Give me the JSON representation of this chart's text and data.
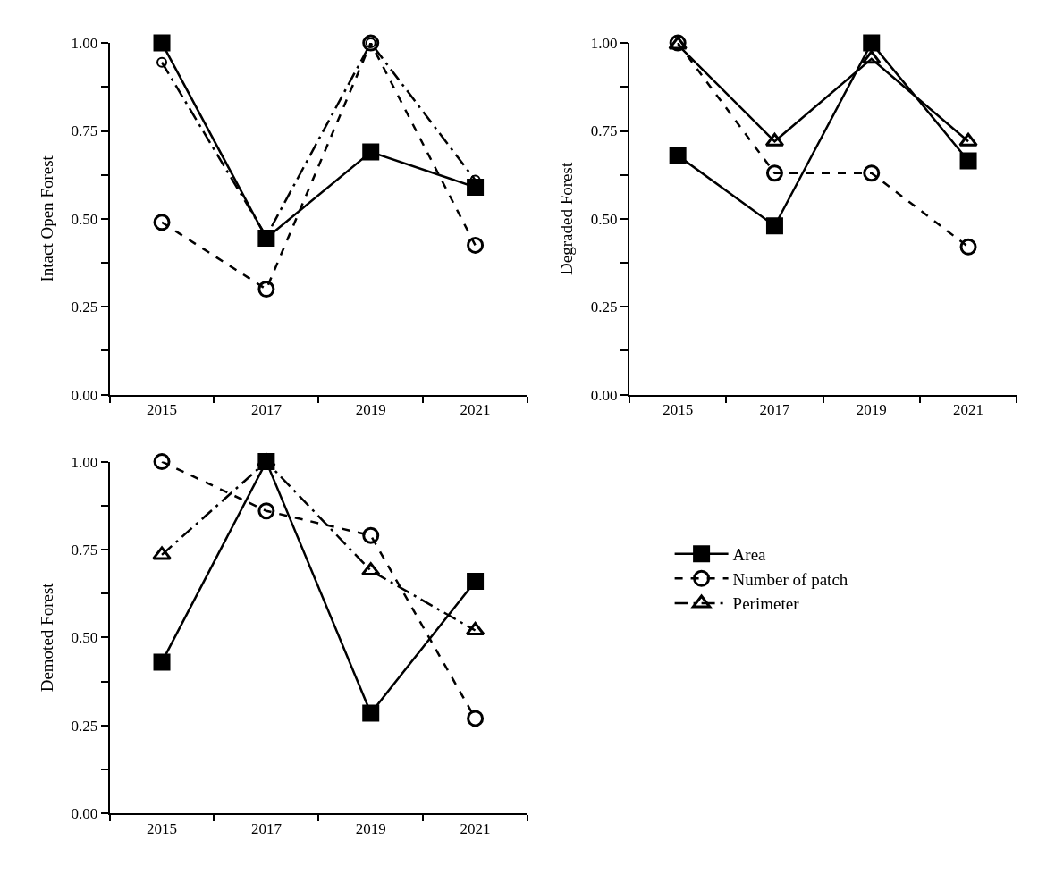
{
  "chart_data": [
    {
      "type": "line",
      "ylabel": "Intact Open Forest",
      "categories": [
        "2015",
        "2017",
        "2019",
        "2021"
      ],
      "ylim": [
        0,
        1.0
      ],
      "yticks": [
        {
          "value": 0,
          "label": "0.00"
        },
        {
          "value": 0.125,
          "label": null
        },
        {
          "value": 0.25,
          "label": "0.25"
        },
        {
          "value": 0.375,
          "label": null
        },
        {
          "value": 0.5,
          "label": "0.50"
        },
        {
          "value": 0.625,
          "label": null
        },
        {
          "value": 0.75,
          "label": "0.75"
        },
        {
          "value": 0.875,
          "label": null
        },
        {
          "value": 1.0,
          "label": "1.00"
        }
      ],
      "series": [
        {
          "color": "#000000",
          "marker": "square",
          "line_style": "solid",
          "values": [
            1.0,
            0.445,
            0.69,
            0.59
          ]
        },
        {
          "color": "#000000",
          "marker": "circle",
          "line_style": "dashed",
          "values": [
            0.49,
            0.3,
            1.0,
            0.425
          ]
        },
        {
          "color": "#000000",
          "marker": "circle",
          "line_style": "dashdot",
          "values": [
            0.945,
            0.45,
            1.0,
            0.61
          ]
        }
      ]
    },
    {
      "type": "line",
      "ylabel": "Degraded Forest",
      "categories": [
        "2015",
        "2017",
        "2019",
        "2021"
      ],
      "ylim": [
        0,
        1.0
      ],
      "yticks": [
        {
          "value": 0,
          "label": "0.00"
        },
        {
          "value": 0.125,
          "label": null
        },
        {
          "value": 0.25,
          "label": "0.25"
        },
        {
          "value": 0.375,
          "label": null
        },
        {
          "value": 0.5,
          "label": "0.50"
        },
        {
          "value": 0.625,
          "label": null
        },
        {
          "value": 0.75,
          "label": "0.75"
        },
        {
          "value": 0.875,
          "label": null
        },
        {
          "value": 1.0,
          "label": "1.00"
        }
      ],
      "series": [
        {
          "color": "#000000",
          "marker": "square",
          "line_style": "solid",
          "values": [
            0.68,
            0.48,
            1.0,
            0.665
          ]
        },
        {
          "color": "#000000",
          "marker": "circle",
          "line_style": "dashed",
          "values": [
            1.0,
            0.63,
            0.63,
            0.42
          ]
        },
        {
          "color": "#000000",
          "marker": "triangle",
          "line_style": "solid",
          "values": [
            0.995,
            0.72,
            0.955,
            0.72
          ]
        }
      ]
    },
    {
      "type": "line",
      "ylabel": "Demoted Forest",
      "categories": [
        "2015",
        "2017",
        "2019",
        "2021"
      ],
      "ylim": [
        0,
        1.0
      ],
      "yticks": [
        {
          "value": 0,
          "label": "0.00"
        },
        {
          "value": 0.125,
          "label": null
        },
        {
          "value": 0.25,
          "label": "0.25"
        },
        {
          "value": 0.375,
          "label": null
        },
        {
          "value": 0.5,
          "label": "0.50"
        },
        {
          "value": 0.625,
          "label": null
        },
        {
          "value": 0.75,
          "label": "0.75"
        },
        {
          "value": 0.875,
          "label": null
        },
        {
          "value": 1.0,
          "label": "1.00"
        }
      ],
      "legend": "right",
      "series": [
        {
          "name": "Area",
          "color": "#000000",
          "marker": "square",
          "line_style": "solid",
          "values": [
            0.43,
            1.0,
            0.285,
            0.66
          ]
        },
        {
          "name": "Number of patch",
          "color": "#000000",
          "marker": "circle",
          "line_style": "dashed",
          "values": [
            1.0,
            0.86,
            0.79,
            0.27
          ]
        },
        {
          "name": "Perimeter",
          "color": "#000000",
          "marker": "triangle",
          "line_style": "dashdot",
          "values": [
            0.735,
            1.0,
            0.69,
            0.52
          ]
        }
      ]
    }
  ]
}
